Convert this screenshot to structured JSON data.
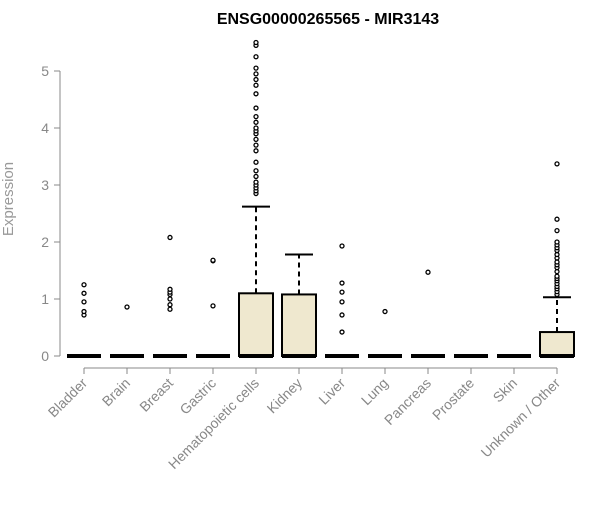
{
  "chart_data": {
    "type": "box",
    "title": "ENSG00000265565 - MIR3143",
    "ylabel": "Expression",
    "ylim": [
      0,
      5.5
    ],
    "yticks": [
      0,
      1,
      2,
      3,
      4,
      5
    ],
    "box_fill": "#efe8cf",
    "categories": [
      "Bladder",
      "Brain",
      "Breast",
      "Gastric",
      "Hematopoietic cells",
      "Kidney",
      "Liver",
      "Lung",
      "Pancreas",
      "Prostate",
      "Skin",
      "Unknown / Other"
    ],
    "boxes": [
      {
        "q1": 0,
        "median": 0,
        "q3": 0,
        "whisker_high": 0,
        "outliers": [
          0.72,
          0.78,
          0.95,
          1.1,
          1.25
        ]
      },
      {
        "q1": 0,
        "median": 0,
        "q3": 0,
        "whisker_high": 0,
        "outliers": [
          0.86
        ]
      },
      {
        "q1": 0,
        "median": 0,
        "q3": 0,
        "whisker_high": 0,
        "outliers": [
          0.82,
          0.9,
          1.0,
          1.08,
          1.12,
          1.17,
          2.08
        ]
      },
      {
        "q1": 0,
        "median": 0,
        "q3": 0,
        "whisker_high": 0,
        "outliers": [
          0.88,
          1.67,
          1.68
        ]
      },
      {
        "q1": 0,
        "median": 0,
        "q3": 1.1,
        "whisker_high": 2.62,
        "outliers": [
          2.85,
          2.9,
          2.95,
          3.0,
          3.05,
          3.15,
          3.25,
          3.4,
          3.6,
          3.7,
          3.8,
          3.9,
          3.95,
          4.0,
          4.1,
          4.2,
          4.35,
          4.6,
          4.75,
          4.85,
          4.95,
          5.05,
          5.25,
          5.45,
          5.5
        ]
      },
      {
        "q1": 0,
        "median": 0,
        "q3": 1.08,
        "whisker_high": 1.78,
        "outliers": []
      },
      {
        "q1": 0,
        "median": 0,
        "q3": 0,
        "whisker_high": 0,
        "outliers": [
          0.42,
          0.72,
          0.95,
          1.12,
          1.28,
          1.93
        ]
      },
      {
        "q1": 0,
        "median": 0,
        "q3": 0,
        "whisker_high": 0,
        "outliers": [
          0.78
        ]
      },
      {
        "q1": 0,
        "median": 0,
        "q3": 0,
        "whisker_high": 0,
        "outliers": [
          1.47
        ]
      },
      {
        "q1": 0,
        "median": 0,
        "q3": 0,
        "whisker_high": 0,
        "outliers": []
      },
      {
        "q1": 0,
        "median": 0,
        "q3": 0,
        "whisker_high": 0,
        "outliers": []
      },
      {
        "q1": 0,
        "median": 0,
        "q3": 0.42,
        "whisker_high": 1.03,
        "outliers": [
          1.08,
          1.13,
          1.18,
          1.22,
          1.27,
          1.32,
          1.36,
          1.4,
          1.48,
          1.55,
          1.6,
          1.65,
          1.72,
          1.78,
          1.85,
          1.9,
          1.95,
          2.0,
          2.2,
          2.4,
          3.37
        ]
      }
    ]
  }
}
